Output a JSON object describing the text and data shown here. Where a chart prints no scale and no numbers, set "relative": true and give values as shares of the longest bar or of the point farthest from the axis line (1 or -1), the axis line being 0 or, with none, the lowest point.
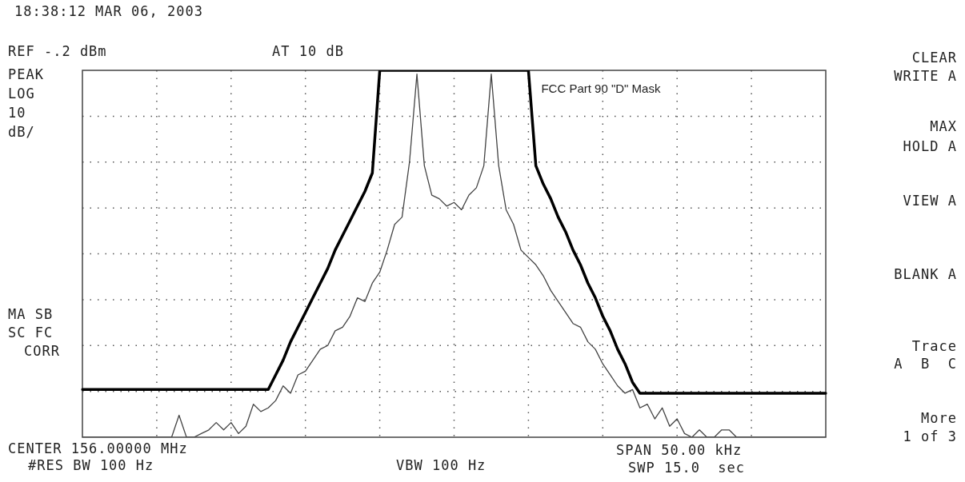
{
  "chart_data": {
    "type": "line",
    "title": "18:38:12 MAR 06, 2003",
    "relative": true,
    "grid": true,
    "legend": false,
    "marker": "none",
    "line_style": "solid",
    "categories": [
      null,
      null,
      null,
      null,
      null,
      null,
      null,
      null,
      null,
      null,
      null,
      null,
      null,
      null,
      null,
      null,
      null,
      null,
      null,
      null,
      null,
      null,
      null,
      null,
      null,
      null,
      null,
      null,
      null,
      null,
      null,
      null,
      null,
      null,
      null,
      null,
      null,
      null,
      null,
      null,
      null,
      null,
      null,
      null,
      null,
      null,
      null,
      null,
      null,
      null,
      null,
      null,
      null,
      null,
      null,
      null,
      null,
      null,
      null,
      null,
      null,
      null,
      null,
      null,
      null,
      null,
      null,
      null,
      null,
      null,
      null,
      null,
      null,
      null,
      null,
      null,
      null,
      null,
      null,
      null,
      null,
      null,
      null,
      null,
      null,
      null,
      null,
      null,
      null,
      null,
      null,
      null,
      null,
      null,
      null,
      null,
      null,
      null,
      null,
      null,
      null
    ],
    "series": [
      {
        "color": "#444444",
        "values": [
          0,
          0,
          0,
          0,
          0,
          0,
          0,
          0,
          0,
          0,
          0,
          0,
          0,
          0.06,
          0,
          0,
          0.01,
          0.02,
          0.04,
          0.02,
          0.04,
          0.01,
          0.03,
          0.09,
          0.07,
          0.08,
          0.1,
          0.14,
          0.12,
          0.17,
          0.18,
          0.21,
          0.24,
          0.25,
          0.29,
          0.3,
          0.33,
          0.38,
          0.37,
          0.42,
          0.45,
          0.51,
          0.58,
          0.6,
          0.75,
          0.99,
          0.74,
          0.66,
          0.65,
          0.63,
          0.64,
          0.62,
          0.66,
          0.68,
          0.74,
          0.99,
          0.74,
          0.62,
          0.58,
          0.51,
          0.49,
          0.47,
          0.44,
          0.4,
          0.37,
          0.34,
          0.31,
          0.3,
          0.26,
          0.24,
          0.2,
          0.17,
          0.14,
          0.12,
          0.13,
          0.08,
          0.09,
          0.05,
          0.08,
          0.03,
          0.05,
          0.01,
          0,
          0.02,
          0,
          0,
          0.02,
          0.02,
          0,
          0,
          0,
          0,
          0,
          0,
          0,
          0,
          0,
          0,
          0,
          0,
          0
        ]
      },
      {
        "name": "FCC Part 90 \"D\" Mask",
        "color": "#000000",
        "values": [
          0.13,
          0.13,
          0.13,
          0.13,
          0.13,
          0.13,
          0.13,
          0.13,
          0.13,
          0.13,
          0.13,
          0.13,
          0.13,
          0.13,
          0.13,
          0.13,
          0.13,
          0.13,
          0.13,
          0.13,
          0.13,
          0.13,
          0.13,
          0.13,
          0.13,
          0.13,
          0.17,
          0.21,
          0.26,
          0.3,
          0.34,
          0.38,
          0.42,
          0.46,
          0.51,
          0.55,
          0.59,
          0.63,
          0.67,
          0.72,
          1,
          1,
          1,
          1,
          1,
          1,
          1,
          1,
          1,
          1,
          1,
          1,
          1,
          1,
          1,
          1,
          1,
          1,
          1,
          1,
          1,
          0.74,
          0.69,
          0.65,
          0.6,
          0.56,
          0.51,
          0.47,
          0.42,
          0.38,
          0.33,
          0.29,
          0.24,
          0.2,
          0.15,
          0.12,
          0.12,
          0.12,
          0.12,
          0.12,
          0.12,
          0.12,
          0.12,
          0.12,
          0.12,
          0.12,
          0.12,
          0.12,
          0.12,
          0.12,
          0.12,
          0.12,
          0.12,
          0.12,
          0.12,
          0.12,
          0.12,
          0.12,
          0.12,
          0.12,
          0.12
        ]
      }
    ],
    "annotations": [
      "REF -.2 dBm",
      "AT 10 dB",
      "PEAK",
      "LOG",
      "10",
      "dB/",
      "MA SB",
      "SC FC",
      "CORR",
      "CENTER 156.00000 MHz",
      "#RES BW 100 Hz",
      "VBW 100 Hz",
      "SPAN 50.00 kHz",
      "SWP 15.0  sec",
      "CLEAR",
      "WRITE A",
      "MAX",
      "HOLD A",
      "VIEW A",
      "BLANK A",
      "Trace",
      "A  B  C",
      "More",
      "1 of 3"
    ]
  }
}
